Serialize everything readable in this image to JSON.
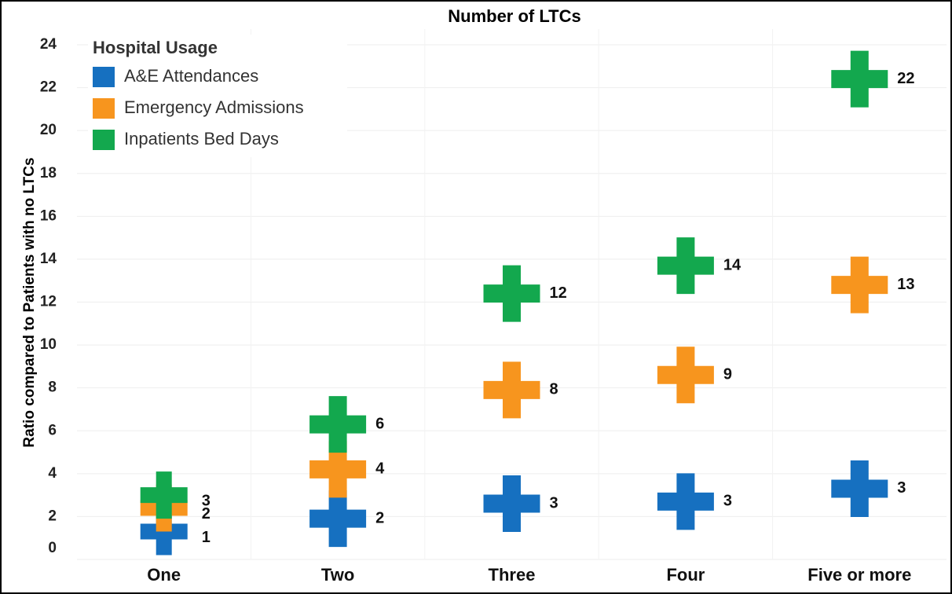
{
  "chart_data": {
    "type": "cross",
    "title": "Number of LTCs",
    "ylabel": "Ratio compared to Patients with no LTCs",
    "legend_title": "Hospital Usage",
    "legend": "top-left",
    "grid": true,
    "categories": [
      "One",
      "Two",
      "Three",
      "Four",
      "Five or more"
    ],
    "ylim": [
      0,
      24
    ],
    "yticks": [
      0,
      2,
      4,
      6,
      8,
      10,
      12,
      14,
      16,
      18,
      20,
      22,
      24
    ],
    "series": [
      {
        "name": "A&E Attendances",
        "color": "#1670c0",
        "values": [
          1.3,
          1.9,
          2.6,
          2.7,
          3.3
        ],
        "value_labels": [
          "1",
          "2",
          "3",
          "3",
          "3"
        ]
      },
      {
        "name": "Emergency Admissions",
        "color": "#f7951e",
        "values": [
          2.4,
          4.2,
          7.9,
          8.6,
          12.8
        ],
        "value_labels": [
          "2",
          "4",
          "8",
          "9",
          "13"
        ]
      },
      {
        "name": "Inpatients Bed Days",
        "color": "#13a84e",
        "values": [
          3.0,
          6.3,
          12.4,
          13.7,
          22.4
        ],
        "value_labels": [
          "3",
          "6",
          "12",
          "14",
          "22"
        ]
      }
    ]
  }
}
